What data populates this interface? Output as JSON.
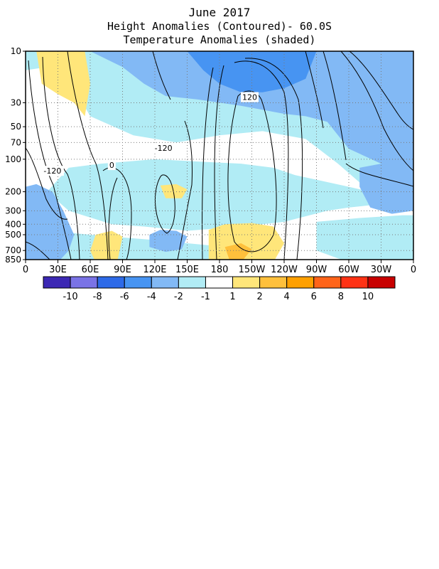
{
  "title": "June 2017",
  "subtitle_1": "Height Anomalies (Contoured)- 60.0S",
  "subtitle_2": "Temperature Anomalies (shaded)",
  "chart_data": {
    "type": "heatmap",
    "x_axis": {
      "tick_labels": [
        "0",
        "30E",
        "60E",
        "90E",
        "120E",
        "150E",
        "180",
        "150W",
        "120W",
        "90W",
        "60W",
        "30W",
        "0"
      ],
      "range_deg_east": [
        0,
        360
      ]
    },
    "y_axis": {
      "tick_labels": [
        "10",
        "30",
        "50",
        "70",
        "100",
        "200",
        "300",
        "400",
        "500",
        "700",
        "850"
      ],
      "pressure_hPa": [
        10,
        30,
        50,
        70,
        100,
        200,
        300,
        400,
        500,
        700,
        850
      ],
      "scale": "log",
      "direction": "pressure decreasing upward"
    },
    "grid": "dotted",
    "contour_labels": [
      {
        "text": "-120",
        "lon": 25,
        "hPa": 130
      },
      {
        "text": "0",
        "lon": 80,
        "hPa": 115
      },
      {
        "text": "-120",
        "lon": 128,
        "hPa": 80
      },
      {
        "text": "120",
        "lon": 208,
        "hPa": 27
      }
    ],
    "colorbar": {
      "labels": [
        "-10",
        "-8",
        "-6",
        "-4",
        "-2",
        "-1",
        "1",
        "2",
        "4",
        "6",
        "8",
        "10"
      ],
      "colors": [
        "#3c28b4",
        "#7a73e6",
        "#2d6ae8",
        "#4794f2",
        "#82b9f5",
        "#b1ecf5",
        "#ffffff",
        "#ffe67a",
        "#ffc03c",
        "#ffa000",
        "#ff6419",
        "#ff3214",
        "#c80000"
      ]
    },
    "shaded_regions": [
      {
        "level": "-2",
        "color": "#b1ecf5",
        "points": [
          [
            0,
            10
          ],
          [
            360,
            10
          ],
          [
            360,
            900
          ],
          [
            0,
            900
          ]
        ]
      },
      {
        "level": "1",
        "color": "#ffffff",
        "points": [
          [
            0,
            15
          ],
          [
            20,
            14
          ],
          [
            40,
            18
          ],
          [
            60,
            40
          ],
          [
            100,
            60
          ],
          [
            140,
            70
          ],
          [
            180,
            60
          ],
          [
            220,
            55
          ],
          [
            260,
            65
          ],
          [
            290,
            110
          ],
          [
            320,
            200
          ],
          [
            340,
            250
          ],
          [
            360,
            250
          ],
          [
            360,
            900
          ],
          [
            0,
            900
          ]
        ]
      },
      {
        "level": "-2",
        "color": "#b1ecf5",
        "points": [
          [
            40,
            120
          ],
          [
            70,
            110
          ],
          [
            120,
            100
          ],
          [
            160,
            105
          ],
          [
            200,
            110
          ],
          [
            230,
            120
          ],
          [
            250,
            140
          ],
          [
            300,
            180
          ],
          [
            320,
            200
          ],
          [
            360,
            180
          ],
          [
            360,
            250
          ],
          [
            330,
            260
          ],
          [
            300,
            280
          ],
          [
            280,
            300
          ],
          [
            240,
            380
          ],
          [
            200,
            420
          ],
          [
            150,
            460
          ],
          [
            110,
            420
          ],
          [
            80,
            400
          ],
          [
            40,
            300
          ],
          [
            20,
            200
          ]
        ]
      },
      {
        "level": "-2",
        "color": "#b1ecf5",
        "points": [
          [
            0,
            500
          ],
          [
            40,
            480
          ],
          [
            80,
            520
          ],
          [
            120,
            560
          ],
          [
            150,
            600
          ],
          [
            180,
            640
          ],
          [
            170,
            900
          ],
          [
            0,
            900
          ]
        ]
      },
      {
        "level": "-2",
        "color": "#b1ecf5",
        "points": [
          [
            270,
            380
          ],
          [
            310,
            350
          ],
          [
            350,
            330
          ],
          [
            360,
            330
          ],
          [
            360,
            900
          ],
          [
            300,
            900
          ],
          [
            270,
            700
          ]
        ]
      },
      {
        "level": "-4",
        "color": "#82b9f5",
        "points": [
          [
            60,
            10
          ],
          [
            360,
            10
          ],
          [
            360,
            110
          ],
          [
            330,
            110
          ],
          [
            300,
            80
          ],
          [
            280,
            45
          ],
          [
            260,
            40
          ],
          [
            240,
            38
          ],
          [
            200,
            32
          ],
          [
            160,
            28
          ],
          [
            130,
            26
          ],
          [
            110,
            20
          ],
          [
            90,
            14
          ]
        ]
      },
      {
        "level": "-4",
        "color": "#82b9f5",
        "points": [
          [
            0,
            180
          ],
          [
            10,
            170
          ],
          [
            25,
            200
          ],
          [
            35,
            300
          ],
          [
            45,
            500
          ],
          [
            40,
            700
          ],
          [
            30,
            900
          ],
          [
            0,
            900
          ]
        ]
      },
      {
        "level": "-4",
        "color": "#82b9f5",
        "points": [
          [
            310,
            120
          ],
          [
            330,
            110
          ],
          [
            350,
            100
          ],
          [
            360,
            100
          ],
          [
            360,
            300
          ],
          [
            340,
            320
          ],
          [
            320,
            280
          ],
          [
            310,
            180
          ]
        ]
      },
      {
        "level": "-4",
        "color": "#82b9f5",
        "points": [
          [
            115,
            500
          ],
          [
            125,
            450
          ],
          [
            140,
            460
          ],
          [
            150,
            520
          ],
          [
            145,
            680
          ],
          [
            130,
            720
          ],
          [
            115,
            650
          ]
        ]
      },
      {
        "level": "-6",
        "color": "#4794f2",
        "points": [
          [
            150,
            10
          ],
          [
            270,
            10
          ],
          [
            260,
            18
          ],
          [
            240,
            22
          ],
          [
            220,
            24
          ],
          [
            200,
            24
          ],
          [
            180,
            20
          ],
          [
            165,
            15
          ]
        ]
      },
      {
        "level": "2",
        "color": "#ffe67a",
        "points": [
          [
            10,
            10
          ],
          [
            55,
            10
          ],
          [
            60,
            20
          ],
          [
            55,
            40
          ],
          [
            45,
            30
          ],
          [
            30,
            25
          ],
          [
            15,
            20
          ]
        ]
      },
      {
        "level": "2",
        "color": "#ffe67a",
        "points": [
          [
            65,
            500
          ],
          [
            80,
            460
          ],
          [
            90,
            520
          ],
          [
            85,
            900
          ],
          [
            65,
            900
          ],
          [
            60,
            700
          ]
        ]
      },
      {
        "level": "2",
        "color": "#ffe67a",
        "points": [
          [
            125,
            175
          ],
          [
            140,
            170
          ],
          [
            150,
            190
          ],
          [
            145,
            230
          ],
          [
            130,
            230
          ]
        ]
      },
      {
        "level": "2",
        "color": "#ffe67a",
        "points": [
          [
            170,
            450
          ],
          [
            185,
            400
          ],
          [
            210,
            390
          ],
          [
            230,
            420
          ],
          [
            240,
            600
          ],
          [
            230,
            900
          ],
          [
            170,
            900
          ]
        ]
      },
      {
        "level": "4",
        "color": "#ffc03c",
        "points": [
          [
            185,
            650
          ],
          [
            200,
            600
          ],
          [
            210,
            680
          ],
          [
            200,
            900
          ],
          [
            190,
            900
          ]
        ]
      }
    ]
  }
}
